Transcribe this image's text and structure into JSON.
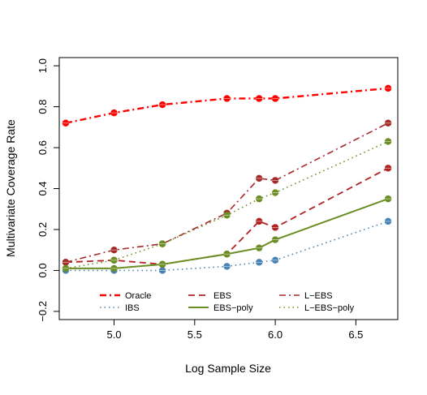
{
  "chart_data": {
    "type": "line",
    "title": "",
    "xlabel": "Log Sample Size",
    "ylabel": "Multivariate Coverage Rate",
    "xlim": [
      4.66,
      6.76
    ],
    "ylim": [
      -0.24,
      1.04
    ],
    "x_ticks": [
      5.0,
      5.5,
      6.0,
      6.5
    ],
    "x_tick_labels": [
      "5.0",
      "5.5",
      "6.0",
      "6.5"
    ],
    "y_ticks": [
      -0.2,
      0.0,
      0.2,
      0.4,
      0.6,
      0.8,
      1.0
    ],
    "y_tick_labels": [
      "−0.2",
      "0.0",
      "0.2",
      "0.4",
      "0.6",
      "0.8",
      "1.0"
    ],
    "grid": false,
    "legend_placement": "bottom",
    "x": [
      4.7,
      5.0,
      5.3,
      5.7,
      5.9,
      6.0,
      6.7
    ],
    "series": [
      {
        "name": "Oracle",
        "color": "#ff0000",
        "dash": "dashdot",
        "width": 2.4,
        "values": [
          0.72,
          0.77,
          0.81,
          0.84,
          0.84,
          0.84,
          0.89
        ]
      },
      {
        "name": "IBS",
        "color": "#4682b4",
        "dash": "dotted",
        "width": 1.6,
        "values": [
          0.0,
          0.0,
          0.0,
          0.02,
          0.04,
          0.05,
          0.24
        ]
      },
      {
        "name": "EBS",
        "color": "#b22222",
        "dash": "dashed",
        "width": 1.8,
        "values": [
          0.04,
          0.05,
          0.03,
          0.08,
          0.24,
          0.21,
          0.5
        ]
      },
      {
        "name": "EBS−poly",
        "color": "#6b8e23",
        "dash": "solid",
        "width": 2.0,
        "values": [
          0.01,
          0.01,
          0.03,
          0.08,
          0.11,
          0.15,
          0.35
        ]
      },
      {
        "name": "L−EBS",
        "color": "#a52a2a",
        "dash": "dashdot",
        "width": 1.6,
        "values": [
          0.04,
          0.1,
          0.13,
          0.28,
          0.45,
          0.44,
          0.72
        ]
      },
      {
        "name": "L−EBS−poly",
        "color": "#6b8e23",
        "dash": "dotted",
        "width": 1.6,
        "values": [
          0.01,
          0.05,
          0.13,
          0.27,
          0.35,
          0.38,
          0.63
        ]
      }
    ]
  }
}
